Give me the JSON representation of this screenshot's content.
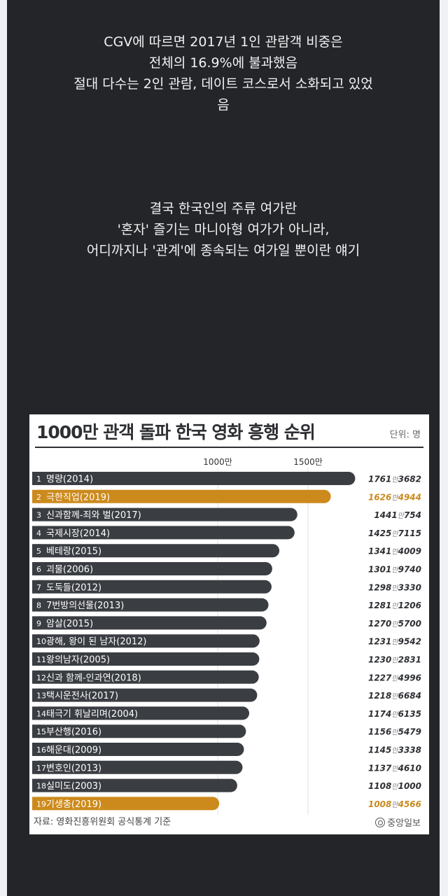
{
  "post": {
    "paragraph1": [
      "CGV에 따르면 2017년  1인 관람객 비중은",
      "전체의 16.9%에 불과했음",
      "절대 다수는 2인 관람, 데이트 코스로서 소화되고 있었",
      "음"
    ],
    "paragraph2": [
      "결국 한국인의 주류 여가란",
      "'혼자' 즐기는 마니아형 여가가 아니라,",
      "어디까지나 '관계'에 종속되는 여가일 뿐이란 얘기"
    ]
  },
  "infographic": {
    "title": "1000만 관객 돌파 한국 영화 흥행 순위",
    "unit": "단위: 명",
    "source": "자료: 영화진흥위원회 공식통계 기준",
    "publisher": "중앙일보"
  },
  "colors": {
    "bar_default": "#3a3d42",
    "bar_highlight": "#cc8a1c",
    "value_default": "#2d2f33",
    "value_highlight": "#c98a1e",
    "background_dark": "#232529"
  },
  "chart_data": {
    "type": "bar",
    "orientation": "horizontal",
    "title": "1000만 관객 돌파 한국 영화 흥행 순위",
    "unit": "명",
    "x_ticks": [
      {
        "value": 10000000,
        "label": "1000만"
      },
      {
        "value": 15000000,
        "label": "1500만"
      }
    ],
    "grid": true,
    "categories": [
      "명량(2014)",
      "극한직업(2019)",
      "신과함께-죄와 벌(2017)",
      "국제시장(2014)",
      "베테랑(2015)",
      "괴물(2006)",
      "도둑들(2012)",
      "7번방의선물(2013)",
      "암살(2015)",
      "광해, 왕이 된 남자(2012)",
      "왕의남자(2005)",
      "신과 함께-인과연(2018)",
      "택시운전사(2017)",
      "태극기 휘날리며(2004)",
      "부산행(2016)",
      "해운대(2009)",
      "변호인(2013)",
      "실미도(2003)",
      "기생충(2019)"
    ],
    "ranks": [
      1,
      2,
      3,
      4,
      5,
      6,
      7,
      8,
      9,
      10,
      11,
      12,
      13,
      14,
      15,
      16,
      17,
      18,
      19
    ],
    "values": [
      17613682,
      16264944,
      14410754,
      14257115,
      13414009,
      13019740,
      12983330,
      12811206,
      12705700,
      12319542,
      12302831,
      12274996,
      12186684,
      11746135,
      11565479,
      11453338,
      11374610,
      11081000,
      10084566
    ],
    "value_labels": [
      [
        "1761",
        "만",
        "3682"
      ],
      [
        "1626",
        "만",
        "4944"
      ],
      [
        "1441",
        "만",
        "754"
      ],
      [
        "1425",
        "만",
        "7115"
      ],
      [
        "1341",
        "만",
        "4009"
      ],
      [
        "1301",
        "만",
        "9740"
      ],
      [
        "1298",
        "만",
        "3330"
      ],
      [
        "1281",
        "만",
        "1206"
      ],
      [
        "1270",
        "만",
        "5700"
      ],
      [
        "1231",
        "만",
        "9542"
      ],
      [
        "1230",
        "만",
        "2831"
      ],
      [
        "1227",
        "만",
        "4996"
      ],
      [
        "1218",
        "만",
        "6684"
      ],
      [
        "1174",
        "만",
        "6135"
      ],
      [
        "1156",
        "만",
        "5479"
      ],
      [
        "1145",
        "만",
        "3338"
      ],
      [
        "1137",
        "만",
        "4610"
      ],
      [
        "1108",
        "만",
        "1000"
      ],
      [
        "1008",
        "만",
        "4566"
      ]
    ],
    "highlighted": [
      2,
      19
    ]
  }
}
